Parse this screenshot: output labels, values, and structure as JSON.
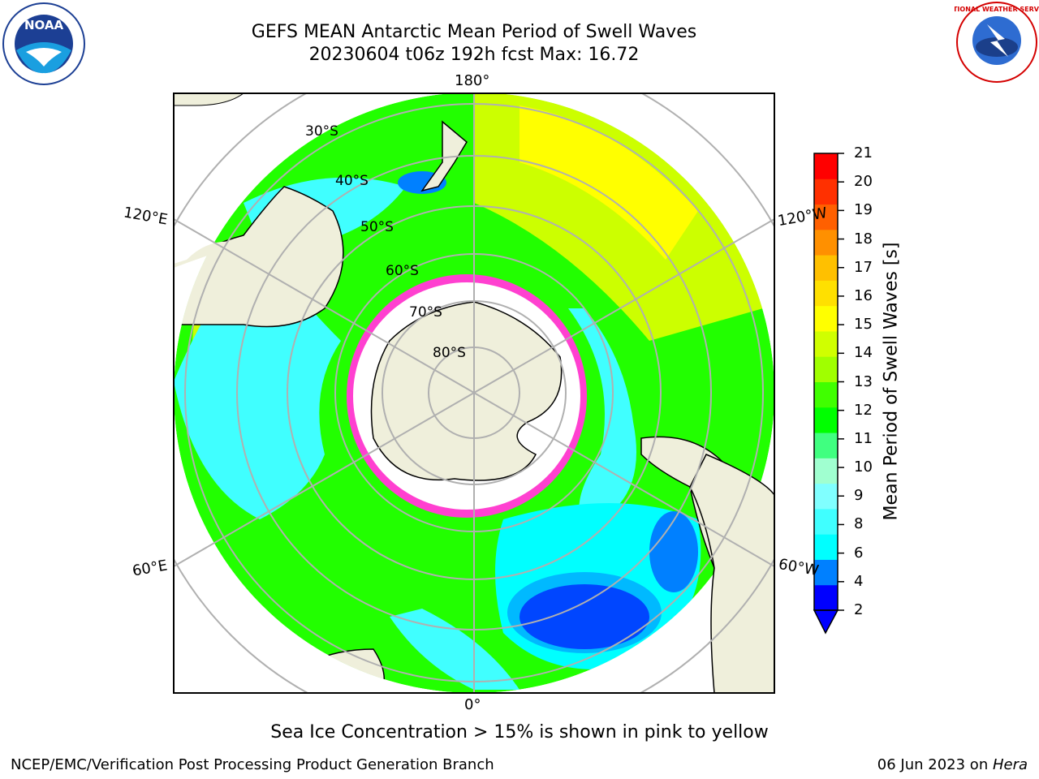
{
  "title_line1": "GEFS MEAN Antarctic Mean Period of Swell Waves",
  "title_line2": "20230604 t06z 192h fcst   Max: 16.72",
  "longitude_labels": {
    "top": "180°",
    "bottom": "0°",
    "left_upper": "120°E",
    "left_lower": "60°E",
    "right_upper": "120°W",
    "right_lower": "60°W"
  },
  "latitude_labels": [
    "30°S",
    "40°S",
    "50°S",
    "60°S",
    "70°S",
    "80°S"
  ],
  "colorbar": {
    "title": "Mean Period of Swell Waves [s]",
    "ticks": [
      "21",
      "20",
      "19",
      "18",
      "17",
      "16",
      "15",
      "14",
      "13",
      "12",
      "11",
      "10",
      "9",
      "8",
      "6",
      "4",
      "2"
    ],
    "colors": [
      "#0000ff",
      "#0080ff",
      "#00ffff",
      "#40ffff",
      "#80ffff",
      "#a0ffd0",
      "#40ff80",
      "#00ff00",
      "#40ff00",
      "#a0ff00",
      "#d0ff00",
      "#ffff00",
      "#ffe000",
      "#ffc000",
      "#ff9000",
      "#ff6000",
      "#ff3000",
      "#ff0000"
    ]
  },
  "caption": "Sea Ice Concentration > 15% is shown in pink to yellow",
  "footer_left": "NCEP/EMC/Verification Post Processing Product Generation Branch",
  "footer_right_date": "06 Jun 2023 on ",
  "footer_right_machine": "Hera",
  "logos": {
    "left": "NOAA",
    "right": "NATIONAL WEATHER SERVICE"
  }
}
